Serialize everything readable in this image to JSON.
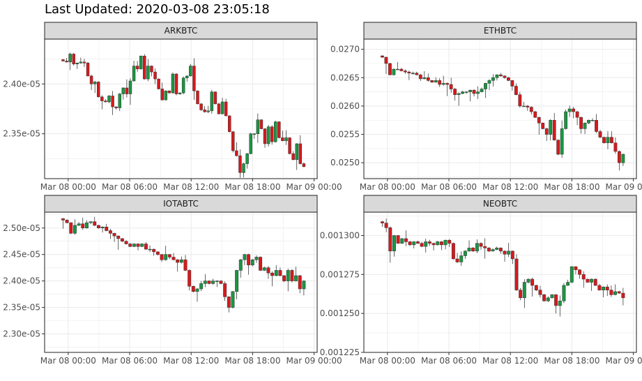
{
  "title": "Last Updated: 2020-03-08 23:05:18",
  "colors": {
    "up": "#1a9641",
    "down": "#d7191c",
    "wick": "#222222",
    "strip": "#d9d9d9",
    "grid": "#ebebeb"
  },
  "chart_data": [
    {
      "type": "candlestick",
      "facet": "ARKBTC",
      "x_tick_labels": [
        "Mar 08 00:00",
        "Mar 08 06:00",
        "Mar 08 12:00",
        "Mar 08 18:00",
        "Mar 09 00:00"
      ],
      "y_tick_labels": [
        "2.35e-05",
        "2.40e-05"
      ],
      "y_ticks": [
        2.35e-05,
        2.4e-05
      ],
      "ylim": [
        2.305e-05,
        2.445e-05
      ],
      "xlim_hours": [
        -2.3,
        24.3
      ],
      "close": [
        2.423e-05,
        2.422e-05,
        2.43e-05,
        2.42e-05,
        2.421e-05,
        2.422e-05,
        2.421e-05,
        2.408e-05,
        2.4e-05,
        2.402e-05,
        2.387e-05,
        2.383e-05,
        2.382e-05,
        2.388e-05,
        2.377e-05,
        2.376e-05,
        2.39e-05,
        2.396e-05,
        2.39e-05,
        2.403e-05,
        2.418e-05,
        2.415e-05,
        2.428e-05,
        2.405e-05,
        2.418e-05,
        2.412e-05,
        2.405e-05,
        2.395e-05,
        2.384e-05,
        2.393e-05,
        2.391e-05,
        2.41e-05,
        2.39e-05,
        2.391e-05,
        2.406e-05,
        2.408e-05,
        2.418e-05,
        2.393e-05,
        2.38e-05,
        2.374e-05,
        2.372e-05,
        2.373e-05,
        2.392e-05,
        2.38e-05,
        2.37e-05,
        2.382e-05,
        2.368e-05,
        2.352e-05,
        2.333e-05,
        2.328e-05,
        2.311e-05,
        2.32e-05,
        2.33e-05,
        2.35e-05,
        2.35e-05,
        2.364e-05,
        2.355e-05,
        2.34e-05,
        2.357e-05,
        2.342e-05,
        2.362e-05,
        2.346e-05,
        2.343e-05,
        2.346e-05,
        2.33e-05,
        2.324e-05,
        2.34e-05,
        2.32e-05,
        2.317e-05
      ]
    },
    {
      "type": "candlestick",
      "facet": "ETHBTC",
      "x_tick_labels": [
        "Mar 08 00:00",
        "Mar 08 06:00",
        "Mar 08 12:00",
        "Mar 08 18:00",
        "Mar 09 00:00"
      ],
      "y_tick_labels": [
        "0.0250",
        "0.0255",
        "0.0260",
        "0.0265",
        "0.0270"
      ],
      "y_ticks": [
        0.025,
        0.0255,
        0.026,
        0.0265,
        0.027
      ],
      "ylim": [
        0.02472,
        0.02718
      ],
      "xlim_hours": [
        -2.3,
        24.3
      ],
      "close": [
        0.02686,
        0.02675,
        0.02655,
        0.02665,
        0.02665,
        0.02662,
        0.0266,
        0.02658,
        0.02658,
        0.02655,
        0.02648,
        0.0265,
        0.02645,
        0.02642,
        0.02645,
        0.02638,
        0.0264,
        0.02638,
        0.0263,
        0.0262,
        0.02622,
        0.02625,
        0.02625,
        0.02628,
        0.02622,
        0.02625,
        0.0263,
        0.0264,
        0.02645,
        0.0265,
        0.02655,
        0.02653,
        0.0265,
        0.02645,
        0.02635,
        0.0262,
        0.026,
        0.026,
        0.02598,
        0.0259,
        0.0258,
        0.0257,
        0.0256,
        0.0255,
        0.02575,
        0.0254,
        0.02515,
        0.0256,
        0.0259,
        0.02595,
        0.0259,
        0.0258,
        0.0256,
        0.0257,
        0.02575,
        0.02575,
        0.02555,
        0.02545,
        0.02535,
        0.02545,
        0.02535,
        0.0252,
        0.025,
        0.02515
      ]
    },
    {
      "type": "candlestick",
      "facet": "IOTABTC",
      "x_tick_labels": [
        "Mar 08 00:00",
        "Mar 08 06:00",
        "Mar 08 12:00",
        "Mar 08 18:00",
        "Mar 09 00:00"
      ],
      "y_tick_labels": [
        "2.30e-05",
        "2.35e-05",
        "2.40e-05",
        "2.45e-05",
        "2.50e-05"
      ],
      "y_ticks": [
        2.3e-05,
        2.35e-05,
        2.4e-05,
        2.45e-05,
        2.5e-05
      ],
      "ylim": [
        2.265e-05,
        2.53e-05
      ],
      "xlim_hours": [
        -2.3,
        24.3
      ],
      "close": [
        2.515e-05,
        2.51e-05,
        2.49e-05,
        2.505e-05,
        2.508e-05,
        2.5e-05,
        2.51e-05,
        2.512e-05,
        2.505e-05,
        2.5e-05,
        2.502e-05,
        2.495e-05,
        2.49e-05,
        2.485e-05,
        2.48e-05,
        2.475e-05,
        2.47e-05,
        2.465e-05,
        2.47e-05,
        2.465e-05,
        2.47e-05,
        2.46e-05,
        2.46e-05,
        2.455e-05,
        2.45e-05,
        2.44e-05,
        2.45e-05,
        2.445e-05,
        2.44e-05,
        2.435e-05,
        2.44e-05,
        2.42e-05,
        2.39e-05,
        2.38e-05,
        2.385e-05,
        2.395e-05,
        2.4e-05,
        2.395e-05,
        2.4e-05,
        2.4e-05,
        2.395e-05,
        2.37e-05,
        2.35e-05,
        2.38e-05,
        2.42e-05,
        2.44e-05,
        2.45e-05,
        2.43e-05,
        2.44e-05,
        2.445e-05,
        2.42e-05,
        2.425e-05,
        2.415e-05,
        2.41e-05,
        2.42e-05,
        2.41e-05,
        2.4e-05,
        2.42e-05,
        2.4e-05,
        2.41e-05,
        2.385e-05,
        2.4e-05
      ]
    },
    {
      "type": "candlestick",
      "facet": "NEOBTC",
      "x_tick_labels": [
        "Mar 08 00:00",
        "Mar 08 06:00",
        "Mar 08 12:00",
        "Mar 08 18:00",
        "Mar 09 00:00"
      ],
      "y_tick_labels": [
        "0.001225",
        "0.001250",
        "0.001275",
        "0.001300"
      ],
      "y_ticks": [
        0.001225,
        0.00125,
        0.001275,
        0.0013
      ],
      "ylim": [
        0.001225,
        0.001315
      ],
      "xlim_hours": [
        -2.3,
        24.3
      ],
      "close": [
        0.001308,
        0.001305,
        0.00129,
        0.0013,
        0.001295,
        0.001298,
        0.001296,
        0.001294,
        0.001296,
        0.001295,
        0.001293,
        0.001296,
        0.001295,
        0.001294,
        0.001296,
        0.001294,
        0.001297,
        0.001295,
        0.001285,
        0.001283,
        0.001287,
        0.00129,
        0.001292,
        0.00129,
        0.001295,
        0.001293,
        0.001292,
        0.00129,
        0.001291,
        0.001292,
        0.00129,
        0.001288,
        0.00129,
        0.001285,
        0.001265,
        0.00126,
        0.00127,
        0.001272,
        0.001268,
        0.001265,
        0.001262,
        0.001258,
        0.00126,
        0.001262,
        0.001255,
        0.001258,
        0.001268,
        0.00127,
        0.00128,
        0.001278,
        0.001275,
        0.001272,
        0.00127,
        0.001272,
        0.001268,
        0.001265,
        0.001267,
        0.001265,
        0.001262,
        0.001264,
        0.001263,
        0.00126
      ]
    }
  ]
}
